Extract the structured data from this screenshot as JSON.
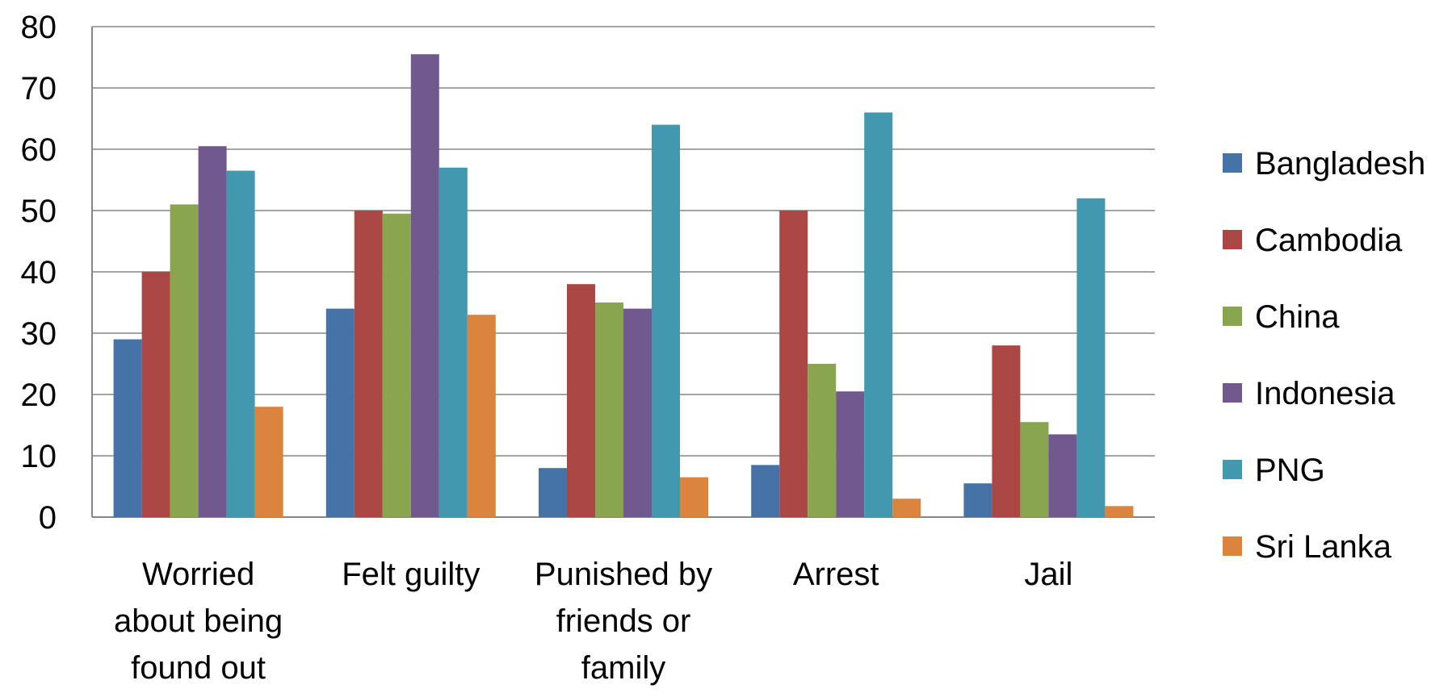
{
  "chart_data": {
    "type": "bar",
    "title": "",
    "xlabel": "",
    "ylabel": "",
    "ylim": [
      0,
      80
    ],
    "ytick_step": 10,
    "grid": true,
    "legend_position": "right",
    "categories": [
      [
        "Worried",
        "about being",
        "found out"
      ],
      [
        "Felt guilty"
      ],
      [
        "Punished by",
        "friends or",
        "family"
      ],
      [
        "Arrest"
      ],
      [
        "Jail"
      ]
    ],
    "series": [
      {
        "name": "Bangladesh",
        "color": "#4572A7",
        "values": [
          29,
          34,
          8,
          8.5,
          5.5
        ]
      },
      {
        "name": "Cambodia",
        "color": "#AA4643",
        "values": [
          40,
          50,
          38,
          50,
          28
        ]
      },
      {
        "name": "China",
        "color": "#89A54E",
        "values": [
          51,
          49.5,
          35,
          25,
          15.5
        ]
      },
      {
        "name": "Indonesia",
        "color": "#71588F",
        "values": [
          60.5,
          75.5,
          34,
          20.5,
          13.5
        ]
      },
      {
        "name": "PNG",
        "color": "#4198AF",
        "values": [
          56.5,
          57,
          64,
          66,
          52
        ]
      },
      {
        "name": "Sri Lanka",
        "color": "#DB843D",
        "values": [
          18,
          33,
          6.5,
          3,
          1.8
        ]
      }
    ]
  }
}
